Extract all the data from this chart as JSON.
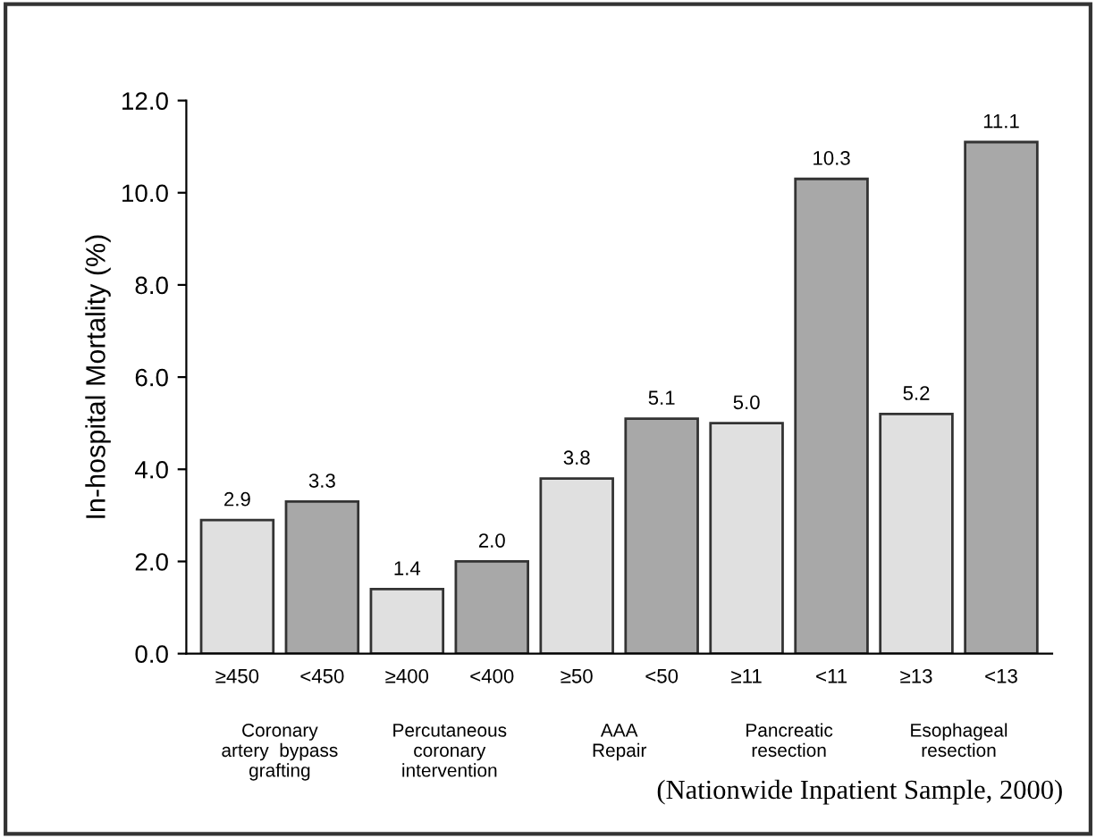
{
  "chart_data": {
    "type": "bar",
    "ylabel": "In-hospital Mortality (%)",
    "categories": [
      "≥450",
      "<450",
      "≥400",
      "<400",
      "≥50",
      "<50",
      "≥11",
      "<11",
      "≥13",
      "<13"
    ],
    "values": [
      2.9,
      3.3,
      1.4,
      2.0,
      3.8,
      5.1,
      5.0,
      10.3,
      5.2,
      11.1
    ],
    "colors": [
      "#e0e0e0",
      "#a8a8a8",
      "#e0e0e0",
      "#a8a8a8",
      "#e0e0e0",
      "#a8a8a8",
      "#e0e0e0",
      "#a8a8a8",
      "#e0e0e0",
      "#a8a8a8"
    ],
    "ylim": [
      0,
      12
    ],
    "yticks": [
      {
        "value": 0,
        "label": "0.0"
      },
      {
        "value": 2,
        "label": "2.0"
      },
      {
        "value": 4,
        "label": "4.0"
      },
      {
        "value": 6,
        "label": "6.0"
      },
      {
        "value": 8,
        "label": "8.0"
      },
      {
        "value": 10,
        "label": "10.0"
      },
      {
        "value": 12,
        "label": "12.0"
      }
    ],
    "value_labels": [
      "2.9",
      "3.3",
      "1.4",
      "2.0",
      "3.8",
      "5.1",
      "5.0",
      "10.3",
      "5.2",
      "11.1"
    ],
    "grid": false,
    "legend": false,
    "annotations": [
      "Coronary\nartery  bypass\ngrafting",
      "Percutaneous\ncoronary\nintervention",
      "AAA\nRepair",
      "Pancreatic\nresection",
      "Esophageal\nresection",
      "(Nationwide Inpatient Sample, 2000)"
    ]
  }
}
